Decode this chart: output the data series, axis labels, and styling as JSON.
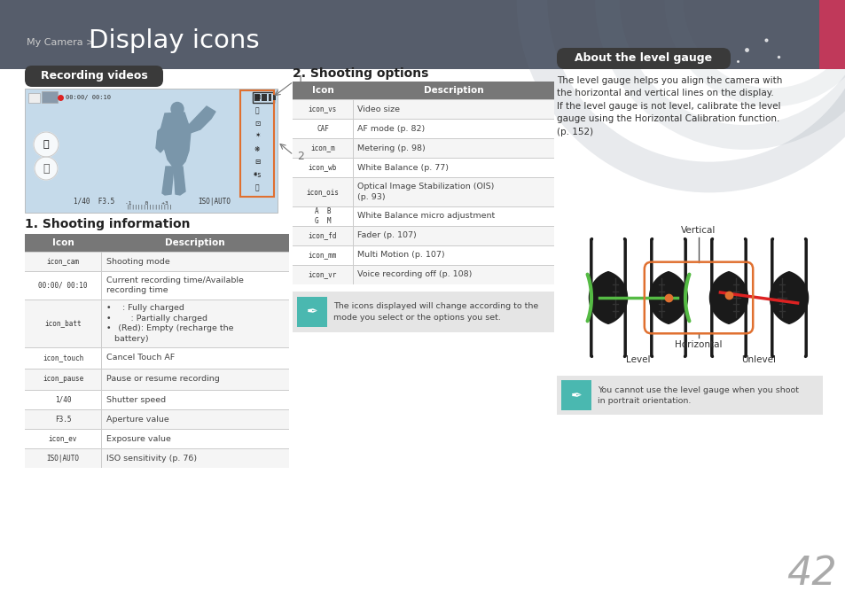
{
  "header_bg": "#565d6b",
  "header_text_small": "My Camera >",
  "header_text_large": "Display icons",
  "pink_bar_color": "#c0395a",
  "page_bg": "#ffffff",
  "page_number": "42",
  "section1_title": "Recording videos",
  "section1_title_bg": "#3a3a3a",
  "section1_title_color": "#ffffff",
  "camera_screen_bg": "#c5daea",
  "camera_screen_border": "#aaaaaa",
  "camera_screen_orange": "#e07030",
  "section2_title": "2. Shooting options",
  "section3_title": "About the level gauge",
  "section3_title_bg": "#3a3a3a",
  "section3_title_color": "#ffffff",
  "level_gauge_desc": "The level gauge helps you align the camera with\nthe horizontal and vertical lines on the display.\nIf the level gauge is not level, calibrate the level\ngauge using the Horizontal Calibration function.\n(p. 152)",
  "note_text": "The icons displayed will change according to the\nmode you select or the options you set.",
  "note_icon_bg": "#4ab8b0",
  "shooting_info_title": "1. Shooting information",
  "table_header_bg": "#777777",
  "table_header_color": "#ffffff",
  "table_line_color": "#cccccc",
  "table_alt_bg": "#f5f5f5",
  "level_note_text": "You cannot use the level gauge when you shoot\nin portrait orientation.",
  "level_note_icon_bg": "#4ab8b0",
  "orange": "#e07030",
  "green": "#55bb44",
  "red": "#dd2222",
  "dark": "#1a1a1a"
}
